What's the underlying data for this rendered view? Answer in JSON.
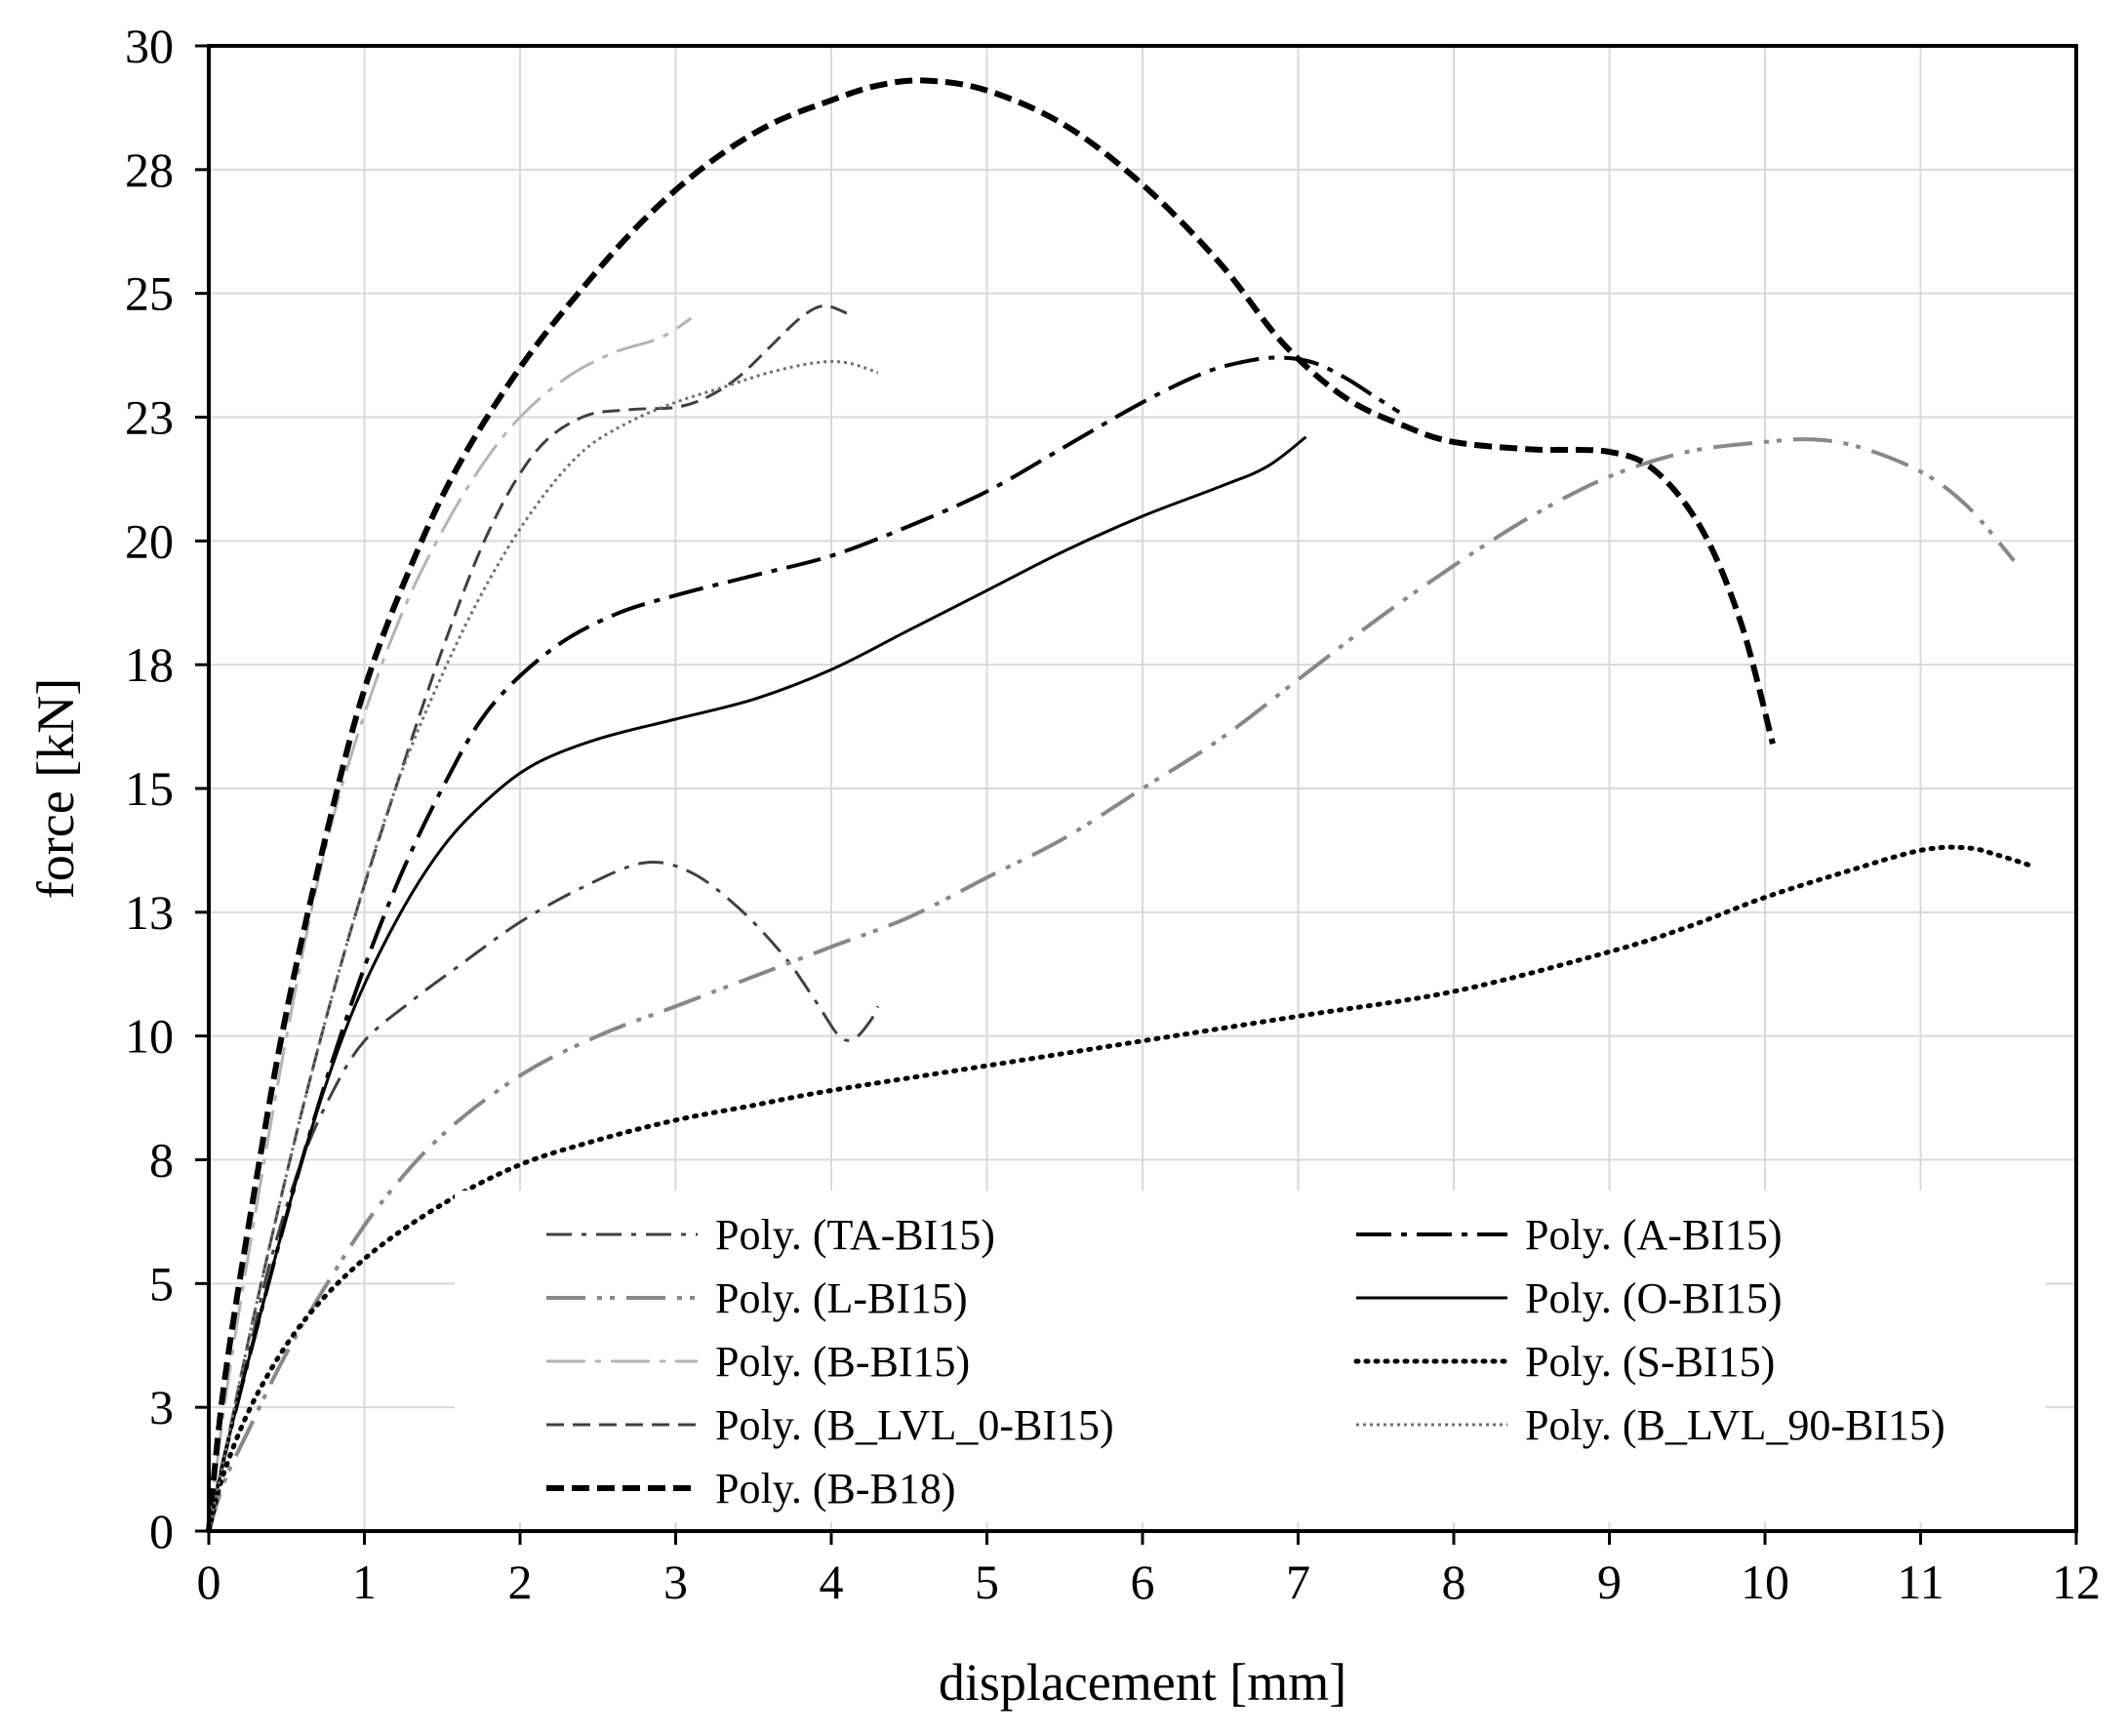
{
  "chart_data": {
    "type": "line",
    "title": "",
    "xlabel": "displacement [mm]",
    "ylabel": "force [kN]",
    "xlim": [
      0,
      12
    ],
    "ylim": [
      0,
      30
    ],
    "x_ticks": [
      0,
      1,
      2,
      3,
      4,
      5,
      6,
      7,
      8,
      9,
      10,
      11,
      12
    ],
    "y_ticks": [
      {
        "value": 0,
        "label": "0"
      },
      {
        "value": 2.5,
        "label": "3"
      },
      {
        "value": 5,
        "label": "5"
      },
      {
        "value": 7.5,
        "label": "8"
      },
      {
        "value": 10,
        "label": "10"
      },
      {
        "value": 12.5,
        "label": "13"
      },
      {
        "value": 15,
        "label": "15"
      },
      {
        "value": 17.5,
        "label": "18"
      },
      {
        "value": 20,
        "label": "20"
      },
      {
        "value": 22.5,
        "label": "23"
      },
      {
        "value": 25,
        "label": "25"
      },
      {
        "value": 27.5,
        "label": "28"
      },
      {
        "value": 30,
        "label": "30"
      }
    ],
    "grid": true,
    "legend_position": "bottom-center",
    "series": [
      {
        "name": "Poly. (TA-BI15)",
        "color": "#404040",
        "dash": "26 10 5 10",
        "width": 3,
        "points": [
          [
            0,
            0
          ],
          [
            0.1,
            1.5
          ],
          [
            0.25,
            3.5
          ],
          [
            0.4,
            5.5
          ],
          [
            0.6,
            7.5
          ],
          [
            0.8,
            8.9
          ],
          [
            1.0,
            9.9
          ],
          [
            1.3,
            10.7
          ],
          [
            1.6,
            11.4
          ],
          [
            2.0,
            12.3
          ],
          [
            2.4,
            13.0
          ],
          [
            2.8,
            13.5
          ],
          [
            3.1,
            13.3
          ],
          [
            3.4,
            12.6
          ],
          [
            3.7,
            11.6
          ],
          [
            3.9,
            10.7
          ],
          [
            4.05,
            10.0
          ],
          [
            4.15,
            9.95
          ],
          [
            4.25,
            10.3
          ],
          [
            4.3,
            10.6
          ]
        ]
      },
      {
        "name": "Poly. (L-BI15)",
        "color": "#888888",
        "dash": "40 12 5 8 5 12",
        "width": 4,
        "points": [
          [
            0,
            0
          ],
          [
            0.1,
            1.0
          ],
          [
            0.25,
            2.0
          ],
          [
            0.5,
            3.6
          ],
          [
            0.8,
            5.2
          ],
          [
            1.1,
            6.6
          ],
          [
            1.5,
            8.0
          ],
          [
            2.0,
            9.2
          ],
          [
            2.5,
            10.0
          ],
          [
            3.0,
            10.6
          ],
          [
            3.5,
            11.2
          ],
          [
            4.0,
            11.8
          ],
          [
            4.5,
            12.4
          ],
          [
            5.0,
            13.2
          ],
          [
            5.5,
            14.0
          ],
          [
            6.0,
            15.0
          ],
          [
            6.5,
            16.0
          ],
          [
            7.0,
            17.2
          ],
          [
            7.5,
            18.4
          ],
          [
            8.0,
            19.5
          ],
          [
            8.5,
            20.5
          ],
          [
            9.0,
            21.3
          ],
          [
            9.5,
            21.8
          ],
          [
            10.0,
            22.0
          ],
          [
            10.3,
            22.05
          ],
          [
            10.6,
            21.9
          ],
          [
            11.0,
            21.4
          ],
          [
            11.3,
            20.7
          ],
          [
            11.6,
            19.6
          ]
        ]
      },
      {
        "name": "Poly. (B-BI15)",
        "color": "#b4b4b4",
        "dash": "40 10 6 10",
        "width": 3,
        "points": [
          [
            0,
            0
          ],
          [
            0.1,
            2.5
          ],
          [
            0.25,
            5.5
          ],
          [
            0.5,
            10.0
          ],
          [
            0.75,
            13.8
          ],
          [
            1.0,
            16.5
          ],
          [
            1.25,
            18.6
          ],
          [
            1.5,
            20.2
          ],
          [
            1.75,
            21.5
          ],
          [
            2.0,
            22.5
          ],
          [
            2.3,
            23.3
          ],
          [
            2.6,
            23.8
          ],
          [
            2.9,
            24.1
          ],
          [
            3.1,
            24.5
          ]
        ]
      },
      {
        "name": "Poly. (B_LVL_0-BI15)",
        "color": "#404040",
        "dash": "18 9",
        "width": 3,
        "points": [
          [
            0,
            0
          ],
          [
            0.1,
            1.5
          ],
          [
            0.3,
            4.5
          ],
          [
            0.6,
            8.5
          ],
          [
            0.9,
            12.0
          ],
          [
            1.2,
            15.0
          ],
          [
            1.5,
            17.8
          ],
          [
            1.8,
            20.2
          ],
          [
            2.1,
            21.8
          ],
          [
            2.4,
            22.5
          ],
          [
            2.7,
            22.65
          ],
          [
            3.0,
            22.7
          ],
          [
            3.2,
            22.9
          ],
          [
            3.4,
            23.3
          ],
          [
            3.6,
            23.9
          ],
          [
            3.8,
            24.5
          ],
          [
            3.95,
            24.75
          ],
          [
            4.1,
            24.6
          ]
        ]
      },
      {
        "name": "Poly. (B-B18)",
        "color": "#000000",
        "dash": "18 8",
        "width": 6,
        "points": [
          [
            0,
            0
          ],
          [
            0.1,
            3.0
          ],
          [
            0.3,
            7.0
          ],
          [
            0.5,
            10.5
          ],
          [
            0.75,
            14.0
          ],
          [
            1.0,
            17.0
          ],
          [
            1.3,
            19.5
          ],
          [
            1.6,
            21.5
          ],
          [
            2.0,
            23.5
          ],
          [
            2.4,
            25.1
          ],
          [
            2.8,
            26.5
          ],
          [
            3.2,
            27.6
          ],
          [
            3.6,
            28.4
          ],
          [
            4.0,
            28.9
          ],
          [
            4.3,
            29.2
          ],
          [
            4.6,
            29.3
          ],
          [
            5.0,
            29.1
          ],
          [
            5.5,
            28.4
          ],
          [
            6.0,
            27.2
          ],
          [
            6.5,
            25.6
          ],
          [
            6.9,
            24.0
          ],
          [
            7.3,
            22.9
          ],
          [
            7.7,
            22.3
          ],
          [
            8.0,
            22.0
          ],
          [
            8.5,
            21.85
          ],
          [
            9.0,
            21.8
          ],
          [
            9.3,
            21.4
          ],
          [
            9.6,
            20.2
          ],
          [
            9.85,
            18.3
          ],
          [
            10.05,
            15.9
          ]
        ]
      },
      {
        "name": "Poly. (A-BI15)",
        "color": "#000000",
        "dash": "36 10 6 10",
        "width": 4,
        "points": [
          [
            0,
            0
          ],
          [
            0.1,
            1.5
          ],
          [
            0.3,
            4.0
          ],
          [
            0.6,
            7.5
          ],
          [
            0.9,
            10.5
          ],
          [
            1.2,
            13.0
          ],
          [
            1.5,
            15.0
          ],
          [
            1.8,
            16.6
          ],
          [
            2.2,
            17.8
          ],
          [
            2.6,
            18.5
          ],
          [
            3.0,
            18.9
          ],
          [
            3.5,
            19.3
          ],
          [
            4.0,
            19.7
          ],
          [
            4.5,
            20.3
          ],
          [
            5.0,
            21.0
          ],
          [
            5.5,
            21.9
          ],
          [
            6.0,
            22.8
          ],
          [
            6.4,
            23.4
          ],
          [
            6.7,
            23.65
          ],
          [
            6.9,
            23.7
          ],
          [
            7.1,
            23.6
          ],
          [
            7.3,
            23.3
          ],
          [
            7.5,
            22.9
          ],
          [
            7.65,
            22.6
          ]
        ]
      },
      {
        "name": "Poly. (O-BI15)",
        "color": "#000000",
        "dash": "",
        "width": 3,
        "points": [
          [
            0,
            0
          ],
          [
            0.1,
            1.5
          ],
          [
            0.3,
            4.0
          ],
          [
            0.6,
            7.5
          ],
          [
            0.9,
            10.3
          ],
          [
            1.2,
            12.3
          ],
          [
            1.5,
            13.8
          ],
          [
            1.8,
            14.8
          ],
          [
            2.1,
            15.5
          ],
          [
            2.5,
            16.0
          ],
          [
            3.0,
            16.4
          ],
          [
            3.5,
            16.8
          ],
          [
            4.0,
            17.4
          ],
          [
            4.5,
            18.2
          ],
          [
            5.0,
            19.0
          ],
          [
            5.5,
            19.8
          ],
          [
            6.0,
            20.5
          ],
          [
            6.5,
            21.1
          ],
          [
            6.8,
            21.5
          ],
          [
            7.05,
            22.1
          ]
        ]
      },
      {
        "name": "Poly. (S-BI15)",
        "color": "#000000",
        "dash": "2 8",
        "width": 5,
        "points": [
          [
            0,
            0
          ],
          [
            0.1,
            1.2
          ],
          [
            0.3,
            2.7
          ],
          [
            0.6,
            4.2
          ],
          [
            1.0,
            5.5
          ],
          [
            1.5,
            6.6
          ],
          [
            2.0,
            7.4
          ],
          [
            2.5,
            7.9
          ],
          [
            3.0,
            8.3
          ],
          [
            3.5,
            8.6
          ],
          [
            4.0,
            8.9
          ],
          [
            5.0,
            9.4
          ],
          [
            6.0,
            9.9
          ],
          [
            7.0,
            10.4
          ],
          [
            8.0,
            10.9
          ],
          [
            9.0,
            11.7
          ],
          [
            9.5,
            12.2
          ],
          [
            10.0,
            12.8
          ],
          [
            10.5,
            13.3
          ],
          [
            11.0,
            13.75
          ],
          [
            11.3,
            13.8
          ],
          [
            11.5,
            13.65
          ],
          [
            11.7,
            13.45
          ]
        ]
      },
      {
        "name": "Poly. (B_LVL_90-BI15)",
        "color": "#707070",
        "dash": "3 4",
        "width": 3,
        "points": [
          [
            0,
            0
          ],
          [
            0.1,
            1.5
          ],
          [
            0.3,
            4.5
          ],
          [
            0.6,
            8.5
          ],
          [
            0.9,
            12.0
          ],
          [
            1.2,
            15.0
          ],
          [
            1.5,
            17.3
          ],
          [
            1.8,
            19.2
          ],
          [
            2.1,
            20.7
          ],
          [
            2.4,
            21.8
          ],
          [
            2.7,
            22.4
          ],
          [
            3.0,
            22.8
          ],
          [
            3.3,
            23.1
          ],
          [
            3.6,
            23.4
          ],
          [
            3.9,
            23.6
          ],
          [
            4.1,
            23.6
          ],
          [
            4.3,
            23.4
          ]
        ]
      }
    ]
  }
}
